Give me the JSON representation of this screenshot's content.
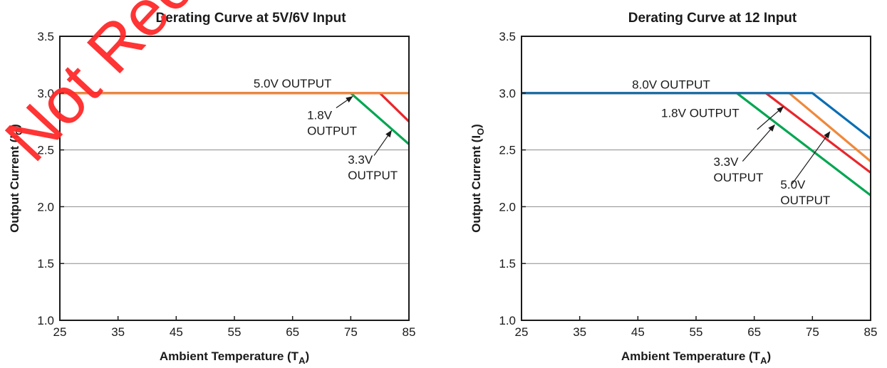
{
  "watermark": {
    "text": "Not Recommended",
    "color": "#ff2a2a"
  },
  "chart_data": [
    {
      "type": "line",
      "title": "Derating Curve at 5V/6V Input",
      "xlabel": "Ambient Temperature (T",
      "xlabel_sub": "A",
      "ylabel": "Output Current (I",
      "ylabel_sub": "O",
      "xlim": [
        25,
        85
      ],
      "ylim": [
        1.0,
        3.5
      ],
      "xticks": [
        25,
        35,
        45,
        55,
        65,
        75,
        85
      ],
      "yticks": [
        "1.0",
        "1.5",
        "2.0",
        "2.5",
        "3.0",
        "3.5"
      ],
      "grid": "horizontal",
      "series": [
        {
          "color": "#00a651",
          "x": [
            25,
            75,
            85
          ],
          "y": [
            3.0,
            3.0,
            2.55
          ]
        },
        {
          "color": "#e8262c",
          "x": [
            25,
            80,
            85
          ],
          "y": [
            3.0,
            3.0,
            2.75
          ]
        },
        {
          "color": "#f0883a",
          "x": [
            25,
            85
          ],
          "y": [
            3.0,
            3.0
          ]
        }
      ],
      "annotations": [
        {
          "lines": [
            "5.0V OUTPUT"
          ],
          "x": 65,
          "y": 3.05,
          "anchor": "middle"
        },
        {
          "lines": [
            "1.8V",
            "OUTPUT"
          ],
          "x": 67.5,
          "y": 2.77,
          "anchor": "start",
          "arrow_from": [
            72.5,
            2.87
          ],
          "arrow_to": [
            75.3,
            2.97
          ]
        },
        {
          "lines": [
            "3.3V",
            "OUTPUT"
          ],
          "x": 74.5,
          "y": 2.38,
          "anchor": "start",
          "arrow_from": [
            79.0,
            2.45
          ],
          "arrow_to": [
            82.0,
            2.67
          ]
        }
      ]
    },
    {
      "type": "line",
      "title": "Derating Curve at 12 Input",
      "xlabel": "Ambient Temperature (T",
      "xlabel_sub": "A",
      "ylabel": "Output Current (I",
      "ylabel_sub": "O",
      "xlim": [
        25,
        85
      ],
      "ylim": [
        1.0,
        3.5
      ],
      "xticks": [
        25,
        35,
        45,
        55,
        65,
        75,
        85
      ],
      "yticks": [
        "1.0",
        "1.5",
        "2.0",
        "2.5",
        "3.0",
        "3.5"
      ],
      "grid": "horizontal",
      "series": [
        {
          "color": "#00a651",
          "x": [
            25,
            62,
            85
          ],
          "y": [
            3.0,
            3.0,
            2.1
          ]
        },
        {
          "color": "#e8262c",
          "x": [
            25,
            67,
            85
          ],
          "y": [
            3.0,
            3.0,
            2.3
          ]
        },
        {
          "color": "#f0883a",
          "x": [
            25,
            71,
            85
          ],
          "y": [
            3.0,
            3.0,
            2.4
          ]
        },
        {
          "color": "#0a6eb4",
          "x": [
            25,
            75,
            85
          ],
          "y": [
            3.0,
            3.0,
            2.6
          ]
        }
      ],
      "annotations": [
        {
          "lines": [
            "8.0V OUTPUT"
          ],
          "x": 44,
          "y": 3.04,
          "anchor": "start"
        },
        {
          "lines": [
            "1.8V OUTPUT"
          ],
          "x": 49,
          "y": 2.79,
          "anchor": "start",
          "arrow_from": [
            65.5,
            2.68
          ],
          "arrow_to": [
            70.0,
            2.88
          ]
        },
        {
          "lines": [
            "3.3V",
            "OUTPUT"
          ],
          "x": 58,
          "y": 2.36,
          "anchor": "start",
          "arrow_from": [
            63.0,
            2.4
          ],
          "arrow_to": [
            68.5,
            2.72
          ]
        },
        {
          "lines": [
            "5.0V",
            "OUTPUT"
          ],
          "x": 69.5,
          "y": 2.16,
          "anchor": "start",
          "arrow_from": [
            71.5,
            2.2
          ],
          "arrow_to": [
            78.0,
            2.66
          ]
        }
      ]
    }
  ]
}
